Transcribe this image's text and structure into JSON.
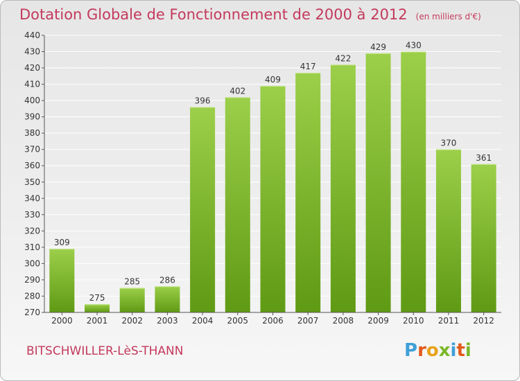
{
  "header": {
    "title": "Dotation Globale de Fonctionnement de 2000 à 2012",
    "subtitle": "(en milliers d'€)"
  },
  "footer": {
    "place": "BITSCHWILLER-LèS-THANN",
    "logo_letters": [
      "P",
      "r",
      "o",
      "x",
      "i",
      "t",
      "i"
    ],
    "logo_colors": [
      "#3fa0d8",
      "#e25a1c",
      "#e8a21a",
      "#7bb82a",
      "#3fa0d8",
      "#e25a1c",
      "#7bb82a"
    ]
  },
  "colors": {
    "bar_top": "#9ccf4a",
    "bar_bottom": "#5f9a14",
    "grid": "#ffffff",
    "axis": "#555555",
    "text": "#333333"
  },
  "chart_data": {
    "type": "bar",
    "categories": [
      "2000",
      "2001",
      "2002",
      "2003",
      "2004",
      "2005",
      "2006",
      "2007",
      "2008",
      "2009",
      "2010",
      "2011",
      "2012"
    ],
    "values": [
      309,
      275,
      285,
      286,
      396,
      402,
      409,
      417,
      422,
      429,
      430,
      370,
      361
    ],
    "ylim": [
      270,
      440
    ],
    "yticks": [
      270,
      280,
      290,
      300,
      310,
      320,
      330,
      340,
      350,
      360,
      370,
      380,
      390,
      400,
      410,
      420,
      430,
      440
    ],
    "grid": true,
    "data_labels": true
  }
}
